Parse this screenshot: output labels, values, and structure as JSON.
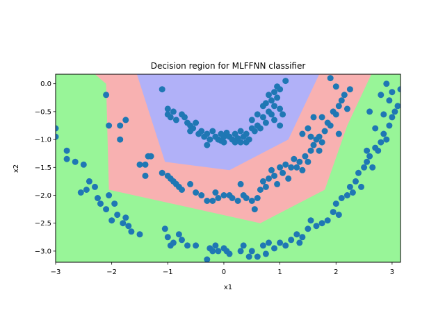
{
  "chart_data": {
    "type": "scatter",
    "title": "Decision region for MLFFNN classifier",
    "xlabel": "x1",
    "ylabel": "x2",
    "xlim": [
      -3.0,
      3.15
    ],
    "ylim": [
      -3.2,
      0.17
    ],
    "xticks": [
      -3,
      -2,
      -1,
      0,
      1,
      2,
      3
    ],
    "yticks": [
      0.0,
      -0.5,
      -1.0,
      -1.5,
      -2.0,
      -2.5,
      -3.0
    ],
    "xtick_labels": [
      "−3",
      "−2",
      "−1",
      "0",
      "1",
      "2",
      "3"
    ],
    "ytick_labels": [
      "0.0",
      "−0.5",
      "−1.0",
      "−1.5",
      "−2.0",
      "−2.5",
      "−3.0"
    ],
    "grid": false,
    "colors": {
      "outer_region": "#98f598",
      "middle_region": "#f8b1b1",
      "inner_region": "#b1b1f8",
      "points": "#1f77b4"
    },
    "regions": [
      {
        "class": "middle",
        "polygon": [
          [
            -2.3,
            0.17
          ],
          [
            2.63,
            0.17
          ],
          [
            2.2,
            -0.75
          ],
          [
            1.8,
            -1.9
          ],
          [
            0.65,
            -2.5
          ],
          [
            -2.05,
            -1.9
          ],
          [
            -2.1,
            0.0
          ]
        ]
      },
      {
        "class": "inner",
        "polygon": [
          [
            -1.55,
            0.17
          ],
          [
            1.7,
            0.17
          ],
          [
            1.15,
            -1.0
          ],
          [
            0.1,
            -1.55
          ],
          [
            -1.05,
            -1.4
          ]
        ]
      }
    ],
    "series": [
      {
        "points": [
          [
            -1.1,
            -0.1
          ],
          [
            -1.0,
            -0.45
          ],
          [
            -1.0,
            -0.55
          ],
          [
            -0.95,
            -0.6
          ],
          [
            -0.9,
            -0.5
          ],
          [
            -0.85,
            -0.65
          ],
          [
            -0.75,
            -0.55
          ],
          [
            -0.7,
            -0.6
          ],
          [
            -0.65,
            -0.7
          ],
          [
            -0.6,
            -0.75
          ],
          [
            -0.6,
            -0.85
          ],
          [
            -0.55,
            -0.8
          ],
          [
            -0.5,
            -0.7
          ],
          [
            -0.45,
            -0.9
          ],
          [
            -0.4,
            -0.85
          ],
          [
            -0.35,
            -0.95
          ],
          [
            -0.3,
            -0.9
          ],
          [
            -0.3,
            -1.1
          ],
          [
            -0.25,
            -1.0
          ],
          [
            -0.2,
            -0.85
          ],
          [
            -0.15,
            -0.95
          ],
          [
            -0.1,
            -1.0
          ],
          [
            -0.05,
            -0.9
          ],
          [
            0.0,
            -0.95
          ],
          [
            0.0,
            -1.05
          ],
          [
            0.05,
            -0.88
          ],
          [
            0.1,
            -0.95
          ],
          [
            0.15,
            -1.0
          ],
          [
            0.2,
            -0.9
          ],
          [
            0.25,
            -0.98
          ],
          [
            0.3,
            -0.85
          ],
          [
            0.35,
            -0.95
          ],
          [
            0.4,
            -0.9
          ],
          [
            0.45,
            -1.0
          ],
          [
            0.5,
            -0.8
          ],
          [
            0.55,
            -0.85
          ],
          [
            0.6,
            -0.75
          ],
          [
            0.65,
            -0.8
          ],
          [
            0.7,
            -0.6
          ],
          [
            0.75,
            -0.7
          ],
          [
            0.8,
            -0.5
          ],
          [
            0.85,
            -0.55
          ],
          [
            0.85,
            -0.3
          ],
          [
            0.9,
            -0.4
          ],
          [
            0.9,
            -0.15
          ],
          [
            0.95,
            -0.25
          ],
          [
            0.95,
            -0.05
          ],
          [
            1.0,
            -0.1
          ],
          [
            1.0,
            -0.45
          ],
          [
            0.8,
            -0.2
          ],
          [
            0.75,
            -0.35
          ],
          [
            1.05,
            -0.55
          ],
          [
            0.9,
            -0.65
          ],
          [
            1.1,
            0.05
          ],
          [
            1.0,
            -0.75
          ],
          [
            0.7,
            -0.4
          ],
          [
            0.6,
            -0.55
          ],
          [
            0.5,
            -0.65
          ],
          [
            0.3,
            -1.05
          ],
          [
            0.2,
            -1.05
          ],
          [
            -0.05,
            -1.02
          ],
          [
            0.4,
            -1.05
          ]
        ]
      },
      {
        "points": [
          [
            -2.1,
            -0.2
          ],
          [
            -2.05,
            -0.75
          ],
          [
            -1.85,
            -0.75
          ],
          [
            -1.75,
            -0.65
          ],
          [
            -1.85,
            -1.0
          ],
          [
            -1.5,
            -1.45
          ],
          [
            -1.4,
            -1.45
          ],
          [
            -1.35,
            -1.3
          ],
          [
            -1.3,
            -1.3
          ],
          [
            -1.4,
            -1.65
          ],
          [
            -1.1,
            -1.6
          ],
          [
            -1.0,
            -1.65
          ],
          [
            -0.95,
            -1.7
          ],
          [
            -0.9,
            -1.75
          ],
          [
            -0.85,
            -1.8
          ],
          [
            -0.8,
            -1.85
          ],
          [
            -0.75,
            -1.9
          ],
          [
            -0.6,
            -1.8
          ],
          [
            -0.5,
            -1.95
          ],
          [
            -0.4,
            -2.0
          ],
          [
            -0.3,
            -2.1
          ],
          [
            -0.2,
            -2.1
          ],
          [
            -0.15,
            -1.95
          ],
          [
            -0.1,
            -2.05
          ],
          [
            0.0,
            -2.0
          ],
          [
            0.1,
            -2.0
          ],
          [
            0.15,
            -2.05
          ],
          [
            0.25,
            -2.1
          ],
          [
            0.3,
            -1.8
          ],
          [
            0.35,
            -2.0
          ],
          [
            0.4,
            -2.05
          ],
          [
            0.5,
            -2.1
          ],
          [
            0.55,
            -2.25
          ],
          [
            0.6,
            -2.05
          ],
          [
            0.65,
            -1.9
          ],
          [
            0.7,
            -1.75
          ],
          [
            0.75,
            -1.85
          ],
          [
            0.8,
            -1.7
          ],
          [
            0.85,
            -1.55
          ],
          [
            0.9,
            -1.65
          ],
          [
            0.95,
            -1.8
          ],
          [
            1.0,
            -1.5
          ],
          [
            1.05,
            -1.6
          ],
          [
            1.1,
            -1.45
          ],
          [
            1.15,
            -1.7
          ],
          [
            1.2,
            -1.5
          ],
          [
            1.25,
            -1.35
          ],
          [
            1.3,
            -1.5
          ],
          [
            1.35,
            -1.4
          ],
          [
            1.4,
            -1.55
          ],
          [
            1.45,
            -1.3
          ],
          [
            1.5,
            -1.4
          ],
          [
            1.55,
            -1.2
          ],
          [
            1.6,
            -1.1
          ],
          [
            1.65,
            -1.0
          ],
          [
            1.7,
            -0.95
          ],
          [
            1.75,
            -1.05
          ],
          [
            1.8,
            -0.85
          ],
          [
            1.85,
            -0.7
          ],
          [
            1.9,
            -0.75
          ],
          [
            1.95,
            -0.5
          ],
          [
            2.0,
            -0.55
          ],
          [
            2.05,
            -0.4
          ],
          [
            2.1,
            -0.3
          ],
          [
            2.15,
            -0.2
          ],
          [
            2.2,
            -0.45
          ],
          [
            2.25,
            -0.1
          ],
          [
            1.9,
            0.1
          ],
          [
            2.0,
            -0.05
          ],
          [
            1.6,
            -0.6
          ],
          [
            1.5,
            -0.8
          ],
          [
            1.4,
            -0.9
          ],
          [
            1.55,
            -0.95
          ],
          [
            1.7,
            -1.2
          ],
          [
            1.75,
            -0.6
          ],
          [
            2.05,
            -0.9
          ]
        ]
      },
      {
        "points": [
          [
            -3.0,
            -0.8
          ],
          [
            -3.0,
            -0.95
          ],
          [
            -2.8,
            -1.2
          ],
          [
            -2.8,
            -1.35
          ],
          [
            -2.65,
            -1.4
          ],
          [
            -2.5,
            -1.45
          ],
          [
            -2.45,
            -1.9
          ],
          [
            -2.55,
            -1.95
          ],
          [
            -2.4,
            -1.75
          ],
          [
            -2.3,
            -1.85
          ],
          [
            -2.25,
            -2.05
          ],
          [
            -2.2,
            -2.15
          ],
          [
            -2.1,
            -2.25
          ],
          [
            -2.05,
            -2.0
          ],
          [
            -2.0,
            -2.45
          ],
          [
            -1.95,
            -2.15
          ],
          [
            -1.9,
            -2.35
          ],
          [
            -1.8,
            -2.5
          ],
          [
            -1.75,
            -2.4
          ],
          [
            -1.7,
            -2.55
          ],
          [
            -1.65,
            -2.65
          ],
          [
            -1.5,
            -2.7
          ],
          [
            -1.05,
            -2.6
          ],
          [
            -1.0,
            -2.75
          ],
          [
            -0.95,
            -2.9
          ],
          [
            -0.9,
            -2.85
          ],
          [
            -0.8,
            -2.7
          ],
          [
            -0.75,
            -2.8
          ],
          [
            -0.65,
            -2.9
          ],
          [
            -0.5,
            -2.9
          ],
          [
            -0.3,
            -3.15
          ],
          [
            -0.25,
            -2.95
          ],
          [
            -0.2,
            -3.0
          ],
          [
            -0.15,
            -2.9
          ],
          [
            -0.1,
            -3.0
          ],
          [
            0.0,
            -2.95
          ],
          [
            0.05,
            -3.0
          ],
          [
            0.1,
            -3.05
          ],
          [
            0.3,
            -3.0
          ],
          [
            0.35,
            -2.9
          ],
          [
            0.45,
            -3.1
          ],
          [
            0.5,
            -3.0
          ],
          [
            0.6,
            -3.1
          ],
          [
            0.7,
            -2.9
          ],
          [
            0.75,
            -3.05
          ],
          [
            0.8,
            -2.85
          ],
          [
            0.9,
            -2.95
          ],
          [
            1.0,
            -2.85
          ],
          [
            1.1,
            -2.9
          ],
          [
            1.2,
            -2.8
          ],
          [
            1.3,
            -2.7
          ],
          [
            1.35,
            -2.85
          ],
          [
            1.4,
            -2.75
          ],
          [
            1.5,
            -2.6
          ],
          [
            1.55,
            -2.45
          ],
          [
            1.65,
            -2.55
          ],
          [
            1.75,
            -2.5
          ],
          [
            1.85,
            -2.45
          ],
          [
            1.95,
            -2.3
          ],
          [
            2.0,
            -2.15
          ],
          [
            2.05,
            -2.35
          ],
          [
            2.1,
            -2.05
          ],
          [
            2.2,
            -2.0
          ],
          [
            2.25,
            -1.85
          ],
          [
            2.3,
            -1.95
          ],
          [
            2.35,
            -1.75
          ],
          [
            2.4,
            -1.6
          ],
          [
            2.45,
            -1.85
          ],
          [
            2.5,
            -1.5
          ],
          [
            2.55,
            -1.4
          ],
          [
            2.6,
            -1.3
          ],
          [
            2.65,
            -1.5
          ],
          [
            2.7,
            -1.15
          ],
          [
            2.75,
            -1.2
          ],
          [
            2.8,
            -1.05
          ],
          [
            2.85,
            -0.9
          ],
          [
            2.9,
            -1.0
          ],
          [
            2.95,
            -0.75
          ],
          [
            3.0,
            -0.6
          ],
          [
            3.05,
            -0.5
          ],
          [
            3.1,
            -0.4
          ],
          [
            2.95,
            -0.3
          ],
          [
            3.0,
            -0.15
          ],
          [
            2.8,
            -0.2
          ],
          [
            2.6,
            -0.5
          ],
          [
            2.7,
            -0.8
          ],
          [
            2.55,
            -1.2
          ],
          [
            3.15,
            -0.1
          ],
          [
            2.9,
            0.0
          ],
          [
            2.85,
            -0.55
          ]
        ]
      }
    ]
  }
}
